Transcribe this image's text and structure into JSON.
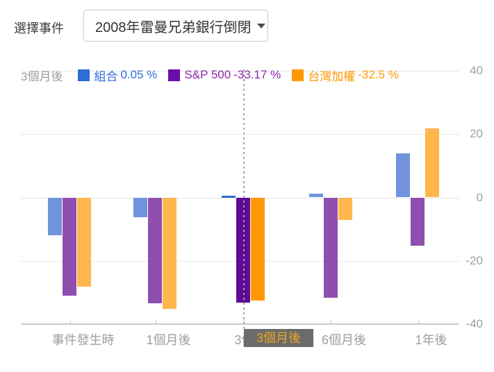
{
  "header": {
    "label": "選擇事件",
    "dropdown_value": "2008年雷曼兄弟銀行倒閉"
  },
  "legend": {
    "period_label": "3個月後",
    "items": [
      {
        "name": "組合",
        "value": "0.05 %",
        "swatch_color": "#2e6bdb",
        "text_color": "#2e6bdb"
      },
      {
        "name": "S&P 500",
        "value": "-33.17 %",
        "swatch_color": "#6a0dad",
        "text_color": "#8e24aa"
      },
      {
        "name": "台灣加權",
        "value": "-32.5 %",
        "swatch_color": "#ff9800",
        "text_color": "#ff9800"
      }
    ]
  },
  "tooltip": {
    "label": "3個月後"
  },
  "chart_data": {
    "type": "bar",
    "title": "",
    "categories": [
      "事件發生時",
      "1個月後",
      "3個月後",
      "6個月後",
      "1年後"
    ],
    "series": [
      {
        "name": "組合",
        "values": [
          -11.9,
          -6.3,
          0.05,
          1.3,
          13.9
        ],
        "color_normal": "#7093dc",
        "color_selected": "#2e6bdb"
      },
      {
        "name": "S&P 500",
        "values": [
          -30.9,
          -33.3,
          -33.17,
          -31.7,
          -15.2
        ],
        "color_normal": "#8e4faf",
        "color_selected": "#5e0a96"
      },
      {
        "name": "台灣加權",
        "values": [
          -28.2,
          -35.2,
          -32.5,
          -7.1,
          21.7
        ],
        "color_normal": "#ffb74d",
        "color_selected": "#ff9800"
      }
    ],
    "selected_category_index": 2,
    "selected_category_label": "3個月後",
    "selected_values": {
      "組合": "0.05 %",
      "S&P 500": "-33.17 %",
      "台灣加權": "-32.5 %"
    },
    "ylabel": "%",
    "ylim": [
      -40,
      40
    ],
    "yticks": [
      40,
      20,
      0,
      -20,
      -40
    ],
    "grid": true,
    "legend_position": "top",
    "value_axis_side": "right"
  }
}
